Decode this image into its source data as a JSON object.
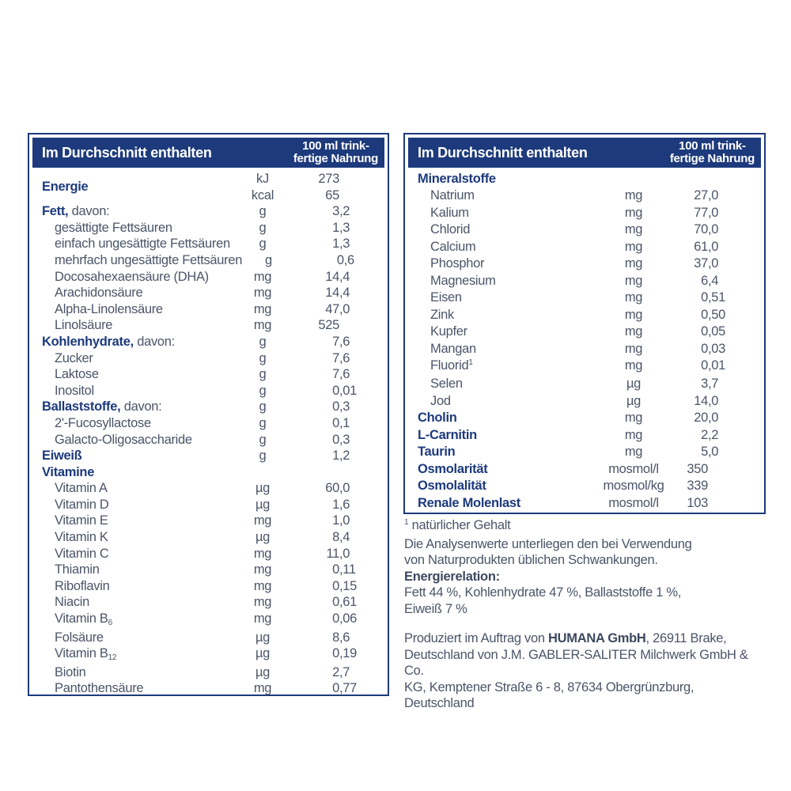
{
  "colors": {
    "navy": "#1d3a7c",
    "body_text": "#4b5568",
    "header_text": "#ffffff",
    "background": "#ffffff"
  },
  "left_table": {
    "header": {
      "title": "Im Durchschnitt enthalten",
      "column": "100 ml trink-\nfertige Nahrung"
    },
    "rows": [
      {
        "label": "Energie",
        "bold": true,
        "units": [
          "kJ",
          "kcal"
        ],
        "values": [
          "273",
          "65"
        ]
      },
      {
        "label": "Fett,",
        "suffix": " davon:",
        "bold": true,
        "unit": "g",
        "value": "3,2"
      },
      {
        "label": "gesättigte Fettsäuren",
        "indent": true,
        "unit": "g",
        "value": "1,3"
      },
      {
        "label": "einfach ungesättigte Fettsäuren",
        "indent": true,
        "unit": "g",
        "value": "1,3"
      },
      {
        "label": "mehrfach ungesättigte Fettsäuren",
        "indent": true,
        "unit": "g",
        "value": "0,6"
      },
      {
        "label": "Docosahexaensäure (DHA)",
        "indent": true,
        "unit": "mg",
        "value": "14,4"
      },
      {
        "label": "Arachidonsäure",
        "indent": true,
        "unit": "mg",
        "value": "14,4"
      },
      {
        "label": "Alpha-Linolensäure",
        "indent": true,
        "unit": "mg",
        "value": "47,0"
      },
      {
        "label": "Linolsäure",
        "indent": true,
        "unit": "mg",
        "value": "525"
      },
      {
        "label": "Kohlenhydrate,",
        "suffix": " davon:",
        "bold": true,
        "unit": "g",
        "value": "7,6"
      },
      {
        "label": "Zucker",
        "indent": true,
        "unit": "g",
        "value": "7,6"
      },
      {
        "label": "Laktose",
        "indent": true,
        "unit": "g",
        "value": "7,6"
      },
      {
        "label": "Inositol",
        "indent": true,
        "unit": "g",
        "value": "0,01"
      },
      {
        "label": "Ballaststoffe,",
        "suffix": " davon:",
        "bold": true,
        "unit": "g",
        "value": "0,3"
      },
      {
        "label": "2'-Fucosyllactose",
        "indent": true,
        "unit": "g",
        "value": "0,1"
      },
      {
        "label": "Galacto-Oligosaccharide",
        "indent": true,
        "unit": "g",
        "value": "0,3"
      },
      {
        "label": "Eiweiß",
        "bold": true,
        "unit": "g",
        "value": "1,2"
      },
      {
        "label": "Vitamine",
        "bold": true
      },
      {
        "label": "Vitamin A",
        "indent": true,
        "unit": "µg",
        "value": "60,0"
      },
      {
        "label": "Vitamin D",
        "indent": true,
        "unit": "µg",
        "value": "1,6"
      },
      {
        "label": "Vitamin E",
        "indent": true,
        "unit": "mg",
        "value": "1,0"
      },
      {
        "label": "Vitamin K",
        "indent": true,
        "unit": "µg",
        "value": "8,4"
      },
      {
        "label": "Vitamin C",
        "indent": true,
        "unit": "mg",
        "value": "11,0"
      },
      {
        "label": "Thiamin",
        "indent": true,
        "unit": "mg",
        "value": "0,11"
      },
      {
        "label": "Riboflavin",
        "indent": true,
        "unit": "mg",
        "value": "0,15"
      },
      {
        "label": "Niacin",
        "indent": true,
        "unit": "mg",
        "value": "0,61"
      },
      {
        "label": "Vitamin B",
        "sub": "6",
        "indent": true,
        "unit": "mg",
        "value": "0,06"
      },
      {
        "label": "Folsäure",
        "indent": true,
        "unit": "µg",
        "value": "8,6"
      },
      {
        "label": "Vitamin B",
        "sub": "12",
        "indent": true,
        "unit": "µg",
        "value": "0,19"
      },
      {
        "label": "Biotin",
        "indent": true,
        "unit": "µg",
        "value": "2,7"
      },
      {
        "label": "Pantothensäure",
        "indent": true,
        "unit": "mg",
        "value": "0,77"
      }
    ]
  },
  "right_table": {
    "header": {
      "title": "Im Durchschnitt enthalten",
      "column": "100 ml trink-\nfertige Nahrung"
    },
    "rows": [
      {
        "label": "Mineralstoffe",
        "bold": true
      },
      {
        "label": "Natrium",
        "indent": true,
        "unit": "mg",
        "value": "27,0"
      },
      {
        "label": "Kalium",
        "indent": true,
        "unit": "mg",
        "value": "77,0"
      },
      {
        "label": "Chlorid",
        "indent": true,
        "unit": "mg",
        "value": "70,0"
      },
      {
        "label": "Calcium",
        "indent": true,
        "unit": "mg",
        "value": "61,0"
      },
      {
        "label": "Phosphor",
        "indent": true,
        "unit": "mg",
        "value": "37,0"
      },
      {
        "label": "Magnesium",
        "indent": true,
        "unit": "mg",
        "value": "6,4"
      },
      {
        "label": "Eisen",
        "indent": true,
        "unit": "mg",
        "value": "0,51"
      },
      {
        "label": "Zink",
        "indent": true,
        "unit": "mg",
        "value": "0,50"
      },
      {
        "label": "Kupfer",
        "indent": true,
        "unit": "mg",
        "value": "0,05"
      },
      {
        "label": "Mangan",
        "indent": true,
        "unit": "mg",
        "value": "0,03"
      },
      {
        "label": "Fluorid",
        "sup": "1",
        "indent": true,
        "unit": "mg",
        "value": "0,01"
      },
      {
        "label": "Selen",
        "indent": true,
        "unit": "µg",
        "value": "3,7"
      },
      {
        "label": "Jod",
        "indent": true,
        "unit": "µg",
        "value": "14,0"
      },
      {
        "label": "Cholin",
        "bold": true,
        "unit": "mg",
        "value": "20,0"
      },
      {
        "label": "L-Carnitin",
        "bold": true,
        "unit": "mg",
        "value": "2,2"
      },
      {
        "label": "Taurin",
        "bold": true,
        "unit": "mg",
        "value": "5,0"
      },
      {
        "label": "Osmolarität",
        "bold": true,
        "unit": "mosmol/l",
        "value": "350"
      },
      {
        "label": "Osmolalität",
        "bold": true,
        "unit": "mosmol/kg",
        "value": "339"
      },
      {
        "label": "Renale Molenlast",
        "bold": true,
        "unit": "mosmol/l",
        "value": "103"
      }
    ]
  },
  "notes": {
    "footnote_marker": "1",
    "footnote": "natürlicher Gehalt",
    "analysis": "Die Analysenwerte unterliegen den bei Verwendung\nvon Naturprodukten üblichen Schwankungen.",
    "energy_relation_label": "Energierelation:",
    "energy_relation": "Fett 44 %, Kohlenhydrate 47 %, Ballaststoffe 1 %,\nEiweiß 7 %"
  },
  "producer": {
    "prefix": "Produziert im Auftrag von ",
    "company": "HUMANA GmbH",
    "suffix": ", 26911 Brake,\nDeutschland von J.M. GABLER-SALITER Milchwerk GmbH & Co.\nKG, Kemptener Straße 6 - 8, 87634 Obergrünzburg,\nDeutschland"
  }
}
